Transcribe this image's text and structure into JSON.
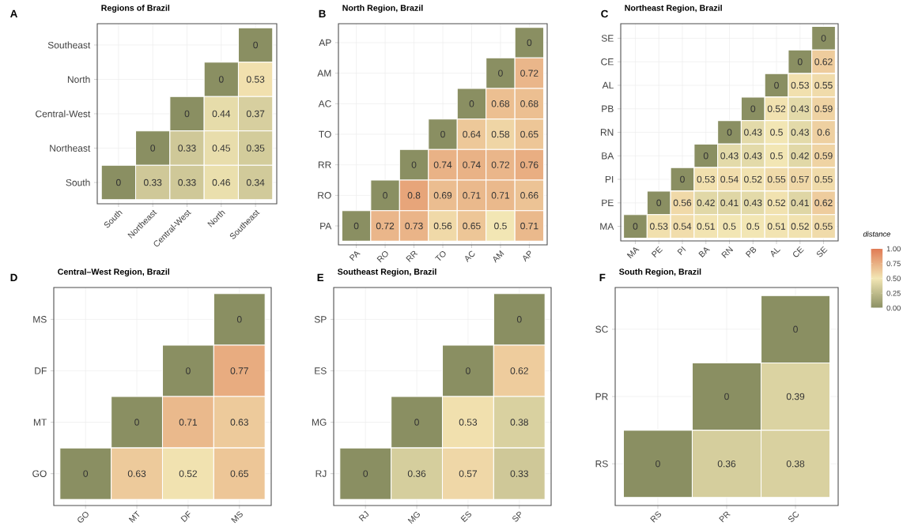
{
  "chart_data": [
    {
      "type": "heatmap",
      "title": "Regions of Brazil",
      "annotations": [
        "A"
      ],
      "grid": true,
      "data_labels": true,
      "categories": [
        "South",
        "Northeast",
        "Central-West",
        "North",
        "Southeast"
      ],
      "y_categories": [
        "Southeast",
        "North",
        "Central-West",
        "Northeast",
        "South"
      ],
      "cells": [
        [
          null,
          null,
          null,
          null,
          0
        ],
        [
          null,
          null,
          null,
          0,
          0.53
        ],
        [
          null,
          null,
          0,
          0.44,
          0.37
        ],
        [
          null,
          0,
          0.33,
          0.45,
          0.35
        ],
        [
          0,
          0.33,
          0.33,
          0.46,
          0.34
        ]
      ]
    },
    {
      "type": "heatmap",
      "title": "North Region, Brazil",
      "annotations": [
        "B"
      ],
      "grid": true,
      "data_labels": true,
      "categories": [
        "PA",
        "RO",
        "RR",
        "TO",
        "AC",
        "AM",
        "AP"
      ],
      "y_categories": [
        "AP",
        "AM",
        "AC",
        "TO",
        "RR",
        "RO",
        "PA"
      ],
      "cells": [
        [
          null,
          null,
          null,
          null,
          null,
          null,
          0
        ],
        [
          null,
          null,
          null,
          null,
          null,
          0,
          0.72
        ],
        [
          null,
          null,
          null,
          null,
          0,
          0.68,
          0.68
        ],
        [
          null,
          null,
          null,
          0,
          0.64,
          0.58,
          0.65
        ],
        [
          null,
          null,
          0,
          0.74,
          0.74,
          0.72,
          0.76
        ],
        [
          null,
          0,
          0.8,
          0.69,
          0.71,
          0.71,
          0.66
        ],
        [
          0,
          0.72,
          0.73,
          0.56,
          0.65,
          0.5,
          0.71
        ]
      ]
    },
    {
      "type": "heatmap",
      "title": "Northeast Region, Brazil",
      "annotations": [
        "C"
      ],
      "grid": true,
      "data_labels": true,
      "categories": [
        "MA",
        "PE",
        "PI",
        "BA",
        "RN",
        "PB",
        "AL",
        "CE",
        "SE"
      ],
      "y_categories": [
        "SE",
        "CE",
        "AL",
        "PB",
        "RN",
        "BA",
        "PI",
        "PE",
        "MA"
      ],
      "cells": [
        [
          null,
          null,
          null,
          null,
          null,
          null,
          null,
          null,
          0
        ],
        [
          null,
          null,
          null,
          null,
          null,
          null,
          null,
          0,
          0.62
        ],
        [
          null,
          null,
          null,
          null,
          null,
          null,
          0,
          0.53,
          0.55
        ],
        [
          null,
          null,
          null,
          null,
          null,
          0,
          0.52,
          0.43,
          0.59
        ],
        [
          null,
          null,
          null,
          null,
          0,
          0.43,
          0.5,
          0.43,
          0.6
        ],
        [
          null,
          null,
          null,
          0,
          0.43,
          0.43,
          0.5,
          0.42,
          0.59
        ],
        [
          null,
          null,
          0,
          0.53,
          0.54,
          0.52,
          0.55,
          0.57,
          0.55
        ],
        [
          null,
          0,
          0.56,
          0.42,
          0.41,
          0.43,
          0.52,
          0.41,
          0.62
        ],
        [
          0,
          0.53,
          0.54,
          0.51,
          0.5,
          0.5,
          0.51,
          0.52,
          0.55
        ]
      ],
      "clabel": "distance",
      "clim": [
        0,
        1
      ],
      "cticks": [
        {
          "value": 0,
          "label": "0.00"
        },
        {
          "value": 0.25,
          "label": "0.25"
        },
        {
          "value": 0.5,
          "label": "0.50"
        },
        {
          "value": 0.75,
          "label": "0.75"
        },
        {
          "value": 1,
          "label": "1.00"
        }
      ]
    },
    {
      "type": "heatmap",
      "title": "Central–West Region, Brazil",
      "annotations": [
        "D"
      ],
      "grid": true,
      "data_labels": true,
      "categories": [
        "GO",
        "MT",
        "DF",
        "MS"
      ],
      "y_categories": [
        "MS",
        "DF",
        "MT",
        "GO"
      ],
      "cells": [
        [
          null,
          null,
          null,
          0
        ],
        [
          null,
          null,
          0,
          0.77
        ],
        [
          null,
          0,
          0.71,
          0.63
        ],
        [
          0,
          0.63,
          0.52,
          0.65
        ]
      ]
    },
    {
      "type": "heatmap",
      "title": "Southeast Region, Brazil",
      "annotations": [
        "E"
      ],
      "grid": true,
      "data_labels": true,
      "categories": [
        "RJ",
        "MG",
        "ES",
        "SP"
      ],
      "y_categories": [
        "SP",
        "ES",
        "MG",
        "RJ"
      ],
      "cells": [
        [
          null,
          null,
          null,
          0
        ],
        [
          null,
          null,
          0,
          0.62
        ],
        [
          null,
          0,
          0.53,
          0.38
        ],
        [
          0,
          0.36,
          0.57,
          0.33
        ]
      ]
    },
    {
      "type": "heatmap",
      "title": "South Region, Brazil",
      "annotations": [
        "F"
      ],
      "grid": true,
      "data_labels": true,
      "categories": [
        "RS",
        "PR",
        "SC"
      ],
      "y_categories": [
        "SC",
        "PR",
        "RS"
      ],
      "cells": [
        [
          null,
          null,
          0
        ],
        [
          null,
          0,
          0.39
        ],
        [
          0,
          0.36,
          0.38
        ]
      ]
    }
  ]
}
